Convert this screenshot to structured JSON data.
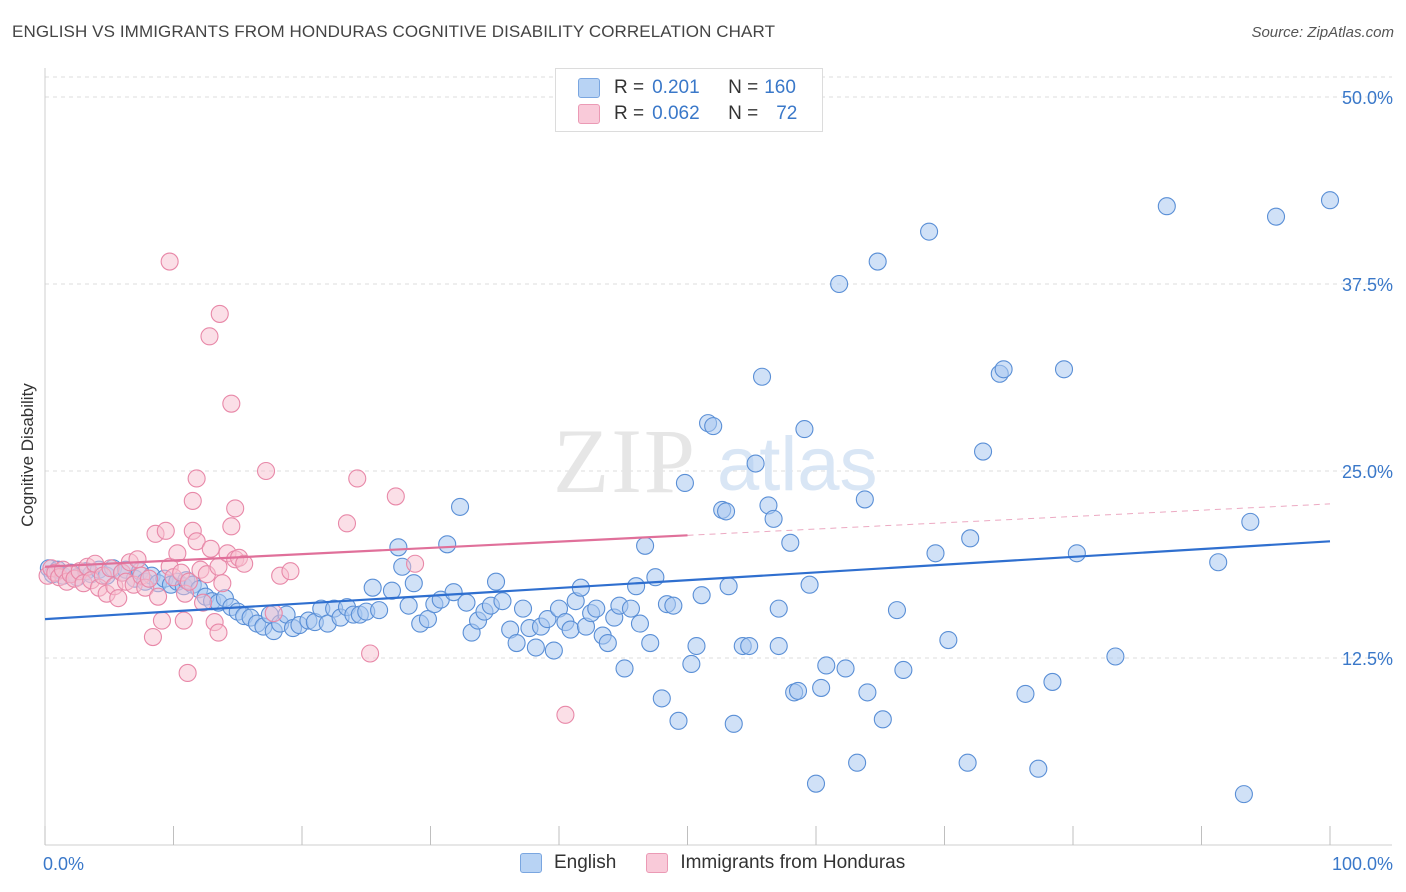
{
  "title": "ENGLISH VS IMMIGRANTS FROM HONDURAS COGNITIVE DISABILITY CORRELATION CHART",
  "source": "Source: ZipAtlas.com",
  "watermark": "ZIPatlas",
  "legend_box": {
    "row1": {
      "r_label": "R = ",
      "r_value": "0.201",
      "n_label": "N = ",
      "n_value": "160"
    },
    "row2": {
      "r_label": "R = ",
      "r_value": "0.062",
      "n_label": "N = ",
      "n_value": "72"
    }
  },
  "bottom_legend": {
    "english": "English",
    "honduras": "Immigrants from Honduras"
  },
  "colors": {
    "english_fill": "#a9c8f0",
    "english_stroke": "#5a8fd6",
    "english_line": "#2f6fcf",
    "honduras_fill": "#f7bfd0",
    "honduras_stroke": "#e888a8",
    "honduras_line": "#e0709a",
    "tick_label": "#3a78c9",
    "grid": "#dddddd"
  },
  "chart_data": {
    "type": "scatter",
    "title": "ENGLISH VS IMMIGRANTS FROM HONDURAS COGNITIVE DISABILITY CORRELATION CHART",
    "xlabel": "",
    "ylabel": "Cognitive Disability",
    "xlim": [
      0,
      100
    ],
    "ylim": [
      0,
      50
    ],
    "x_tick_labels": [
      "0.0%",
      "100.0%"
    ],
    "y_ticks": [
      12.5,
      25.0,
      37.5,
      50.0
    ],
    "y_tick_labels": [
      "12.5%",
      "25.0%",
      "37.5%",
      "50.0%"
    ],
    "grid": "horizontal dashed",
    "series": [
      {
        "name": "English",
        "R": 0.201,
        "N": 160,
        "trend": {
          "x": [
            0,
            100
          ],
          "y": [
            15.1,
            20.3
          ]
        },
        "points": [
          [
            0.3,
            18.5
          ],
          [
            0.6,
            18.1
          ],
          [
            1.0,
            18.4
          ],
          [
            1.4,
            18.0
          ],
          [
            2.0,
            18.2
          ],
          [
            2.5,
            17.9
          ],
          [
            3.2,
            18.3
          ],
          [
            3.6,
            18.1
          ],
          [
            4.2,
            18.4
          ],
          [
            4.8,
            18.0
          ],
          [
            5.3,
            18.5
          ],
          [
            6.0,
            18.2
          ],
          [
            6.3,
            18.4
          ],
          [
            7.0,
            17.8
          ],
          [
            7.4,
            18.3
          ],
          [
            7.8,
            17.6
          ],
          [
            8.3,
            18.0
          ],
          [
            8.8,
            17.5
          ],
          [
            9.3,
            17.8
          ],
          [
            9.8,
            17.4
          ],
          [
            10.3,
            17.6
          ],
          [
            10.8,
            17.3
          ],
          [
            11.0,
            17.7
          ],
          [
            11.5,
            17.4
          ],
          [
            12.0,
            17.1
          ],
          [
            12.5,
            16.6
          ],
          [
            13.0,
            16.3
          ],
          [
            13.5,
            16.2
          ],
          [
            14.0,
            16.5
          ],
          [
            14.5,
            15.9
          ],
          [
            15.0,
            15.6
          ],
          [
            15.5,
            15.3
          ],
          [
            16.0,
            15.2
          ],
          [
            16.5,
            14.8
          ],
          [
            17.0,
            14.6
          ],
          [
            17.5,
            15.4
          ],
          [
            17.8,
            14.3
          ],
          [
            18.3,
            14.8
          ],
          [
            18.8,
            15.4
          ],
          [
            19.3,
            14.5
          ],
          [
            19.8,
            14.7
          ],
          [
            20.5,
            15.0
          ],
          [
            21.0,
            14.9
          ],
          [
            21.5,
            15.8
          ],
          [
            22.0,
            14.8
          ],
          [
            22.5,
            15.8
          ],
          [
            23.0,
            15.2
          ],
          [
            23.5,
            15.9
          ],
          [
            24.0,
            15.4
          ],
          [
            24.5,
            15.4
          ],
          [
            25.0,
            15.6
          ],
          [
            25.5,
            17.2
          ],
          [
            26.0,
            15.7
          ],
          [
            27.0,
            17.0
          ],
          [
            27.5,
            19.9
          ],
          [
            27.8,
            18.6
          ],
          [
            28.3,
            16.0
          ],
          [
            28.7,
            17.5
          ],
          [
            29.2,
            14.8
          ],
          [
            29.8,
            15.1
          ],
          [
            30.3,
            16.1
          ],
          [
            30.8,
            16.4
          ],
          [
            31.3,
            20.1
          ],
          [
            31.8,
            16.9
          ],
          [
            32.3,
            22.6
          ],
          [
            32.8,
            16.2
          ],
          [
            33.2,
            14.2
          ],
          [
            33.7,
            15.0
          ],
          [
            34.2,
            15.6
          ],
          [
            34.7,
            16.0
          ],
          [
            35.1,
            17.6
          ],
          [
            35.6,
            16.3
          ],
          [
            36.2,
            14.4
          ],
          [
            36.7,
            13.5
          ],
          [
            37.2,
            15.8
          ],
          [
            37.7,
            14.5
          ],
          [
            38.2,
            13.2
          ],
          [
            38.6,
            14.6
          ],
          [
            39.1,
            15.1
          ],
          [
            39.6,
            13.0
          ],
          [
            40.0,
            15.8
          ],
          [
            40.5,
            14.9
          ],
          [
            40.9,
            14.4
          ],
          [
            41.3,
            16.3
          ],
          [
            41.7,
            17.2
          ],
          [
            42.1,
            14.6
          ],
          [
            42.5,
            15.5
          ],
          [
            42.9,
            15.8
          ],
          [
            43.4,
            14.0
          ],
          [
            43.8,
            13.5
          ],
          [
            44.3,
            15.2
          ],
          [
            44.7,
            16.0
          ],
          [
            45.1,
            11.8
          ],
          [
            45.6,
            15.8
          ],
          [
            46.0,
            17.3
          ],
          [
            46.3,
            14.8
          ],
          [
            46.7,
            20.0
          ],
          [
            47.1,
            13.5
          ],
          [
            47.5,
            17.9
          ],
          [
            48.0,
            9.8
          ],
          [
            48.4,
            16.1
          ],
          [
            48.9,
            16.0
          ],
          [
            49.3,
            8.3
          ],
          [
            49.8,
            24.2
          ],
          [
            50.3,
            12.1
          ],
          [
            50.7,
            13.3
          ],
          [
            51.1,
            16.7
          ],
          [
            51.6,
            28.2
          ],
          [
            52.0,
            28.0
          ],
          [
            52.7,
            22.4
          ],
          [
            53.0,
            22.3
          ],
          [
            53.2,
            17.3
          ],
          [
            53.6,
            8.1
          ],
          [
            54.3,
            13.3
          ],
          [
            54.8,
            13.3
          ],
          [
            55.3,
            25.5
          ],
          [
            55.8,
            31.3
          ],
          [
            56.3,
            22.7
          ],
          [
            56.7,
            21.8
          ],
          [
            57.1,
            13.3
          ],
          [
            57.1,
            15.8
          ],
          [
            58.0,
            20.2
          ],
          [
            58.3,
            10.2
          ],
          [
            58.6,
            10.3
          ],
          [
            59.1,
            27.8
          ],
          [
            59.5,
            17.4
          ],
          [
            60.0,
            4.1
          ],
          [
            60.4,
            10.5
          ],
          [
            60.8,
            12.0
          ],
          [
            61.8,
            37.5
          ],
          [
            62.3,
            11.8
          ],
          [
            63.2,
            5.5
          ],
          [
            63.8,
            23.1
          ],
          [
            64.0,
            10.2
          ],
          [
            64.8,
            39.0
          ],
          [
            65.2,
            8.4
          ],
          [
            66.3,
            15.7
          ],
          [
            66.8,
            11.7
          ],
          [
            68.8,
            41.0
          ],
          [
            69.3,
            19.5
          ],
          [
            70.3,
            13.7
          ],
          [
            71.8,
            5.5
          ],
          [
            72.0,
            20.5
          ],
          [
            73.0,
            26.3
          ],
          [
            74.3,
            31.5
          ],
          [
            74.6,
            31.8
          ],
          [
            76.3,
            10.1
          ],
          [
            77.3,
            5.1
          ],
          [
            78.4,
            10.9
          ],
          [
            79.3,
            31.8
          ],
          [
            80.3,
            19.5
          ],
          [
            83.3,
            12.6
          ],
          [
            87.3,
            42.7
          ],
          [
            91.3,
            18.9
          ],
          [
            93.3,
            3.4
          ],
          [
            95.8,
            42.0
          ],
          [
            100.0,
            43.1
          ],
          [
            93.8,
            21.6
          ]
        ]
      },
      {
        "name": "Immigrants from Honduras",
        "R": 0.062,
        "N": 72,
        "trend": {
          "x": [
            0,
            50
          ],
          "y": [
            18.6,
            20.7
          ]
        },
        "trend_dashed": {
          "x": [
            50,
            100
          ],
          "y": [
            20.7,
            22.8
          ]
        },
        "points": [
          [
            0.2,
            18.0
          ],
          [
            0.5,
            18.5
          ],
          [
            0.8,
            18.2
          ],
          [
            1.1,
            17.9
          ],
          [
            1.4,
            18.4
          ],
          [
            1.7,
            17.6
          ],
          [
            2.0,
            18.1
          ],
          [
            2.3,
            17.8
          ],
          [
            2.7,
            18.3
          ],
          [
            3.0,
            17.5
          ],
          [
            3.3,
            18.6
          ],
          [
            3.6,
            17.7
          ],
          [
            3.9,
            18.8
          ],
          [
            4.2,
            17.2
          ],
          [
            4.5,
            18.0
          ],
          [
            4.8,
            16.8
          ],
          [
            5.1,
            18.5
          ],
          [
            5.4,
            17.3
          ],
          [
            5.7,
            16.5
          ],
          [
            6.0,
            18.2
          ],
          [
            6.3,
            17.6
          ],
          [
            6.6,
            18.9
          ],
          [
            6.9,
            17.4
          ],
          [
            7.2,
            19.1
          ],
          [
            7.5,
            18.0
          ],
          [
            7.8,
            17.2
          ],
          [
            8.1,
            17.8
          ],
          [
            8.4,
            13.9
          ],
          [
            8.6,
            20.8
          ],
          [
            8.8,
            16.6
          ],
          [
            9.1,
            15.0
          ],
          [
            9.4,
            21.0
          ],
          [
            9.7,
            18.6
          ],
          [
            10.0,
            17.9
          ],
          [
            10.3,
            19.5
          ],
          [
            10.6,
            18.2
          ],
          [
            10.9,
            16.8
          ],
          [
            11.2,
            17.6
          ],
          [
            11.5,
            21.0
          ],
          [
            11.8,
            20.3
          ],
          [
            12.1,
            18.4
          ],
          [
            12.3,
            16.2
          ],
          [
            12.6,
            18.1
          ],
          [
            12.9,
            19.8
          ],
          [
            13.2,
            14.9
          ],
          [
            13.5,
            18.6
          ],
          [
            13.8,
            17.5
          ],
          [
            14.2,
            19.5
          ],
          [
            14.5,
            21.3
          ],
          [
            14.8,
            19.1
          ],
          [
            15.1,
            19.2
          ],
          [
            15.5,
            18.8
          ],
          [
            9.7,
            39.0
          ],
          [
            11.8,
            24.5
          ],
          [
            13.6,
            35.5
          ],
          [
            12.8,
            34.0
          ],
          [
            14.5,
            29.5
          ],
          [
            10.8,
            15.0
          ],
          [
            13.5,
            14.2
          ],
          [
            11.5,
            23.0
          ],
          [
            14.8,
            22.5
          ],
          [
            17.2,
            25.0
          ],
          [
            17.8,
            15.5
          ],
          [
            18.3,
            18.0
          ],
          [
            19.1,
            18.3
          ],
          [
            23.5,
            21.5
          ],
          [
            24.3,
            24.5
          ],
          [
            25.3,
            12.8
          ],
          [
            27.3,
            23.3
          ],
          [
            28.8,
            18.8
          ],
          [
            40.5,
            8.7
          ],
          [
            11.1,
            11.5
          ]
        ]
      }
    ]
  }
}
